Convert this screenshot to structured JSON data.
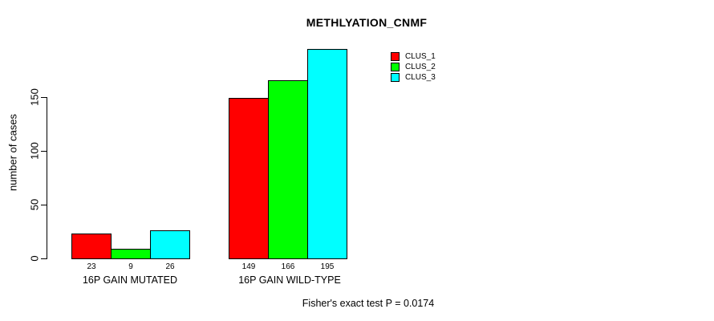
{
  "chart_data": {
    "type": "bar",
    "title": "METHLYATION_CNMF",
    "xlabel": "",
    "ylabel": "number of cases",
    "categories": [
      "16P GAIN MUTATED",
      "16P GAIN WILD-TYPE"
    ],
    "series": [
      {
        "name": "CLUS_1",
        "color": "#ff0000",
        "values": [
          23,
          149
        ]
      },
      {
        "name": "CLUS_2",
        "color": "#00ff00",
        "values": [
          9,
          166
        ]
      },
      {
        "name": "CLUS_3",
        "color": "#00ffff",
        "values": [
          26,
          195
        ]
      }
    ],
    "y_ticks": [
      0,
      50,
      100,
      150
    ],
    "ylim": [
      0,
      199
    ],
    "grid": false,
    "legend_position": "top-right",
    "bar_value_labels_shown": true,
    "annotation": "Fisher's exact test P = 0.0174",
    "axis_color": "#000000",
    "background_color": "#ffffff"
  }
}
